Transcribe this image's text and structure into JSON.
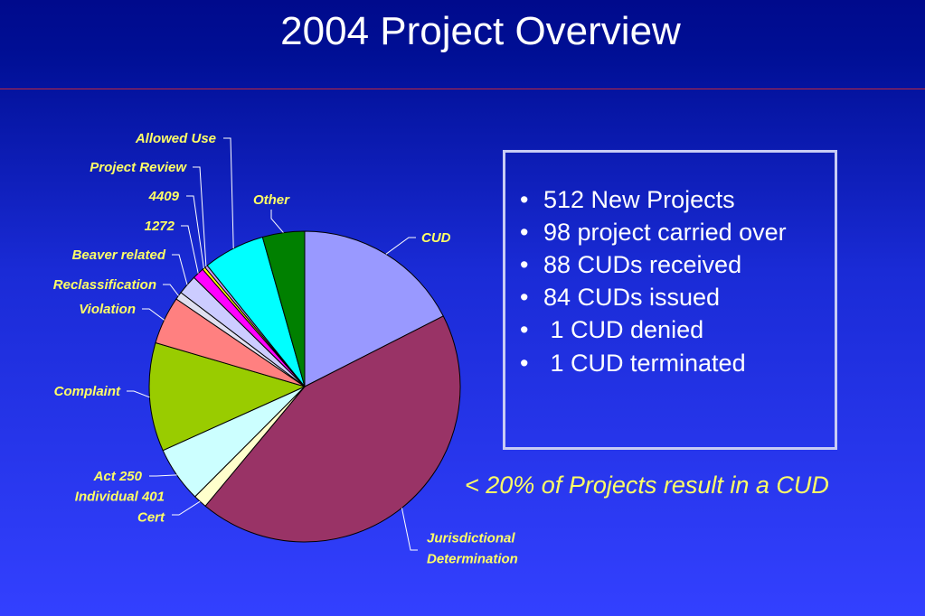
{
  "title": "2004 Project Overview",
  "bullets": [
    "512 New Projects",
    "98 project carried over",
    "88 CUDs received",
    "84 CUDs issued",
    " 1 CUD denied",
    " 1 CUD terminated"
  ],
  "note": "< 20% of Projects result in a CUD",
  "chart_data": {
    "type": "pie",
    "title": "",
    "slices": [
      {
        "label": [
          "CUD"
        ],
        "value": 17.2,
        "color": "#9999ff"
      },
      {
        "label": [
          "Jurisdictional",
          "Determination"
        ],
        "value": 42.8,
        "color": "#993366"
      },
      {
        "label": [
          "Individual 401",
          "Cert"
        ],
        "value": 1.4,
        "color": "#ffffcc"
      },
      {
        "label": [
          "Act 250"
        ],
        "value": 5.7,
        "color": "#ccffff"
      },
      {
        "label": [
          "Complaint"
        ],
        "value": 11.1,
        "color": "#99cc00"
      },
      {
        "label": [
          "Violation"
        ],
        "value": 4.9,
        "color": "#ff8080"
      },
      {
        "label": [
          "Reclassification"
        ],
        "value": 0.8,
        "color": "#e0e0f0"
      },
      {
        "label": [
          "Beaver related"
        ],
        "value": 2.0,
        "color": "#ccccff"
      },
      {
        "label": [
          "1272"
        ],
        "value": 1.2,
        "color": "#ff00ff"
      },
      {
        "label": [
          "4409"
        ],
        "value": 0.3,
        "color": "#ffff00"
      },
      {
        "label": [
          "Project Review"
        ],
        "value": 0.3,
        "color": "#cc99ff"
      },
      {
        "label": [
          "Allowed Use"
        ],
        "value": 6.3,
        "color": "#00ffff"
      },
      {
        "label": [
          "Other"
        ],
        "value": 4.3,
        "color": "#008000"
      }
    ],
    "label_color": "#ffff66"
  }
}
